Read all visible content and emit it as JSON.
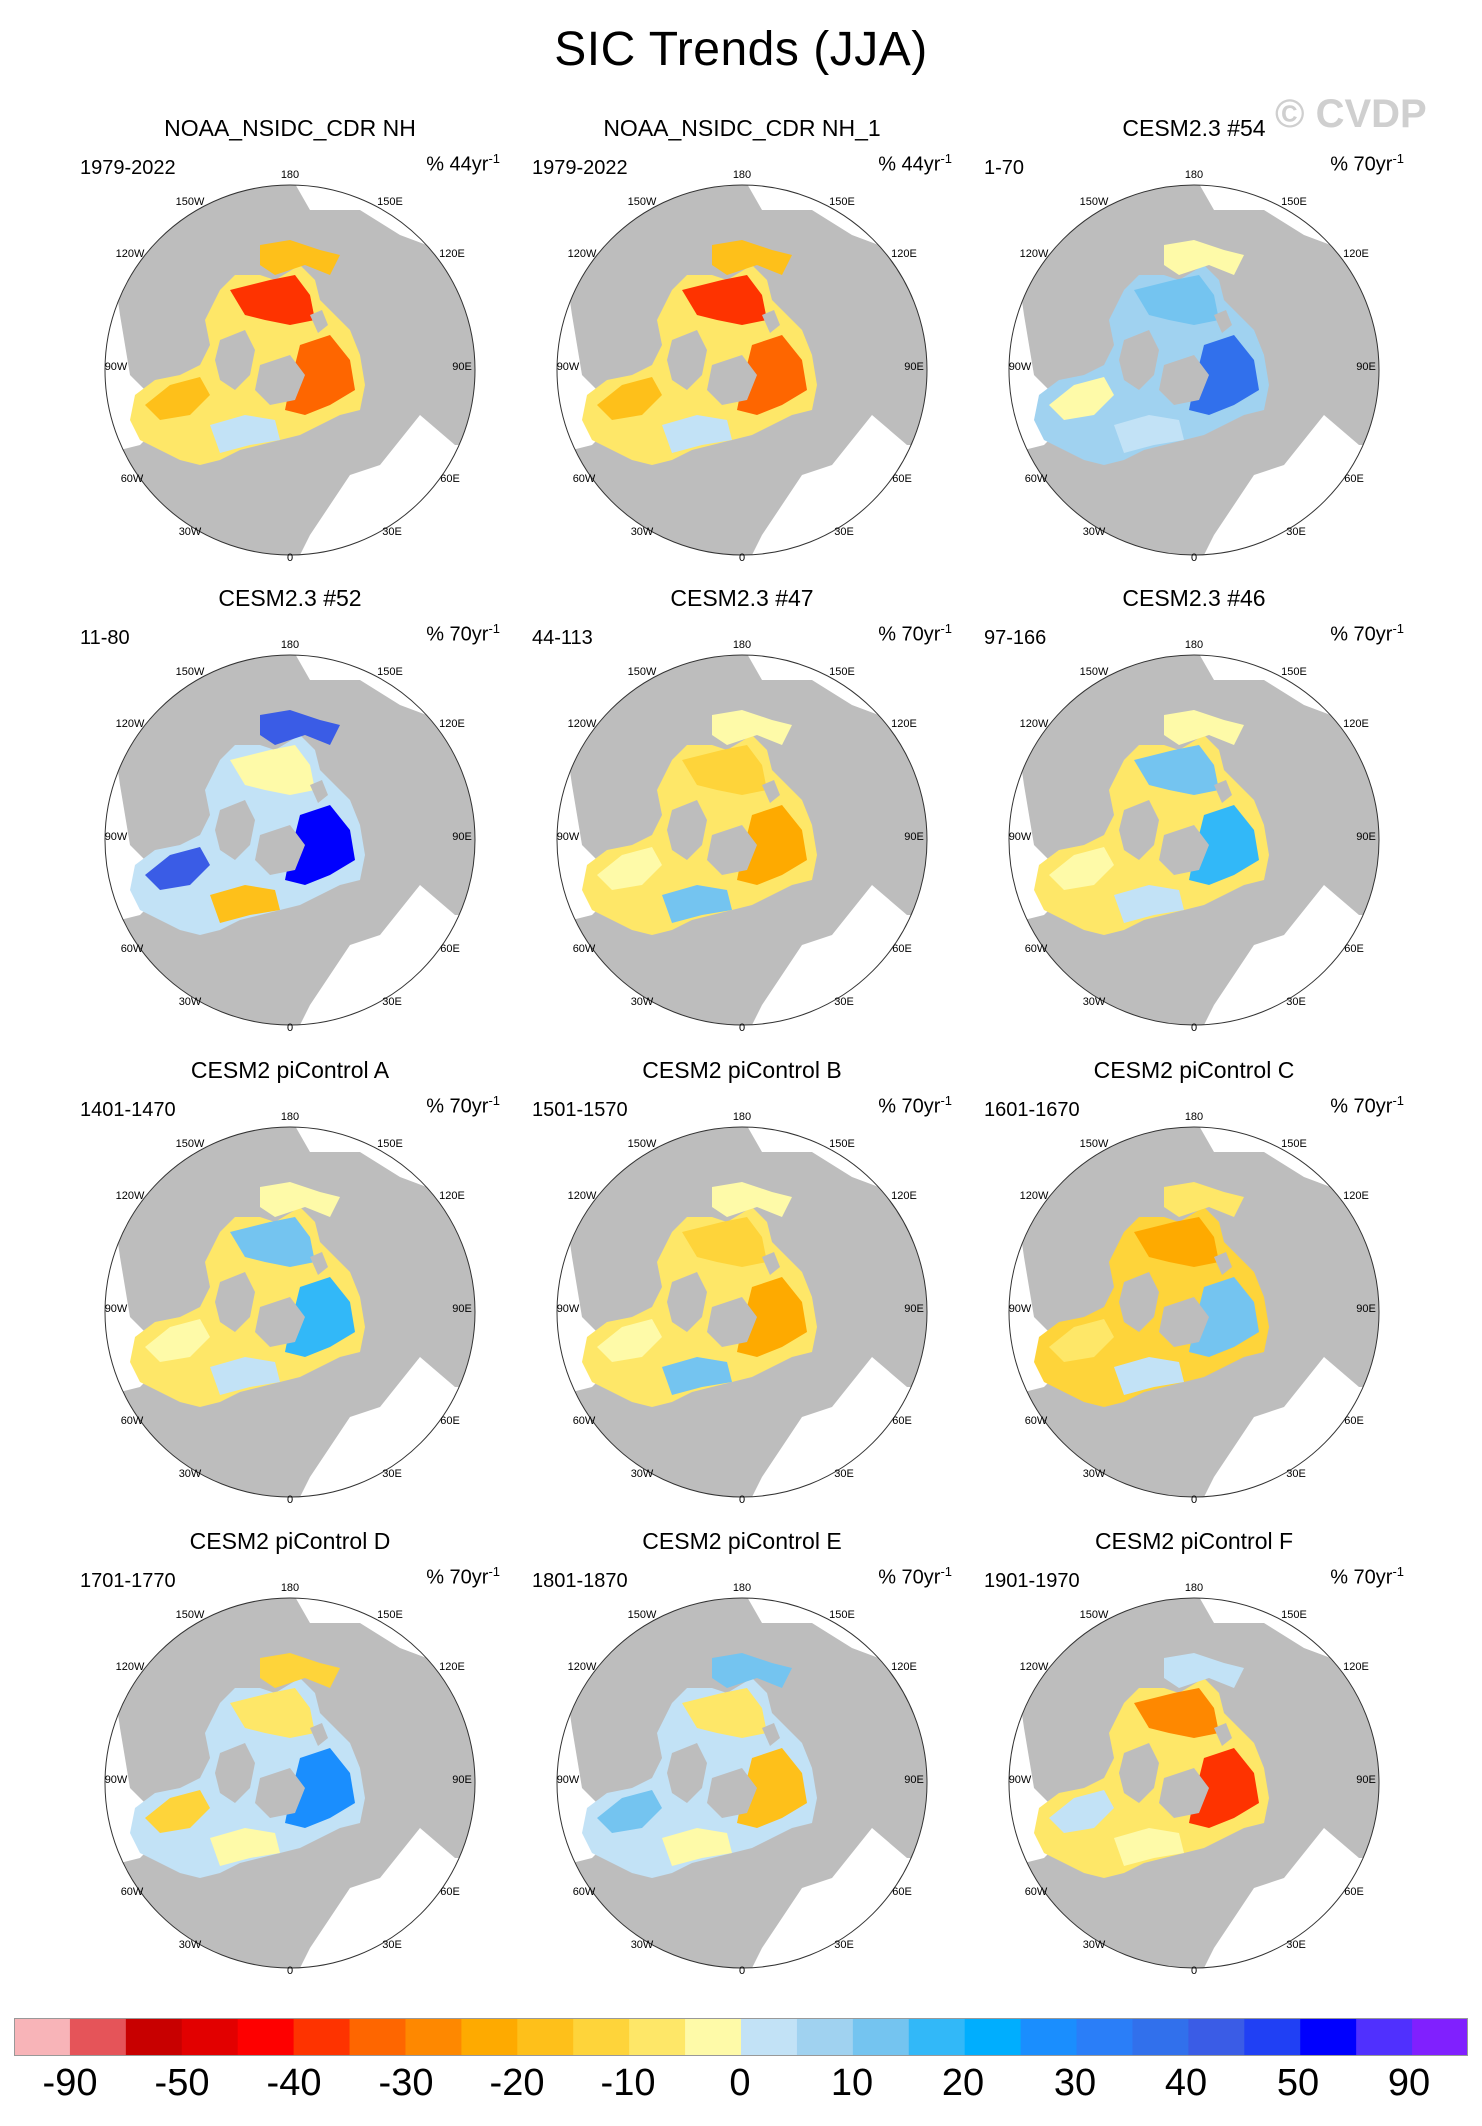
{
  "title": "SIC Trends (JJA)",
  "watermark": "© CVDP",
  "longitude_labels": [
    "180",
    "150W",
    "150E",
    "120W",
    "120E",
    "90W",
    "90E",
    "60W",
    "60E",
    "30W",
    "30E",
    "0"
  ],
  "panels": [
    {
      "title": "NOAA_NSIDC_CDR NH",
      "period": "1979-2022",
      "units": "% 44yr",
      "units_sup": "-1",
      "scenario": "obs"
    },
    {
      "title": "NOAA_NSIDC_CDR NH_1",
      "period": "1979-2022",
      "units": "% 44yr",
      "units_sup": "-1",
      "scenario": "obs"
    },
    {
      "title": "CESM2.3 #54",
      "period": "1-70",
      "units": "% 70yr",
      "units_sup": "-1",
      "scenario": "blue"
    },
    {
      "title": "CESM2.3 #52",
      "period": "11-80",
      "units": "% 70yr",
      "units_sup": "-1",
      "scenario": "bluestrong"
    },
    {
      "title": "CESM2.3 #47",
      "period": "44-113",
      "units": "% 70yr",
      "units_sup": "-1",
      "scenario": "yellow"
    },
    {
      "title": "CESM2.3 #46",
      "period": "97-166",
      "units": "% 70yr",
      "units_sup": "-1",
      "scenario": "mixblue"
    },
    {
      "title": "CESM2 piControl A",
      "period": "1401-1470",
      "units": "% 70yr",
      "units_sup": "-1",
      "scenario": "mixblue"
    },
    {
      "title": "CESM2 piControl B",
      "period": "1501-1570",
      "units": "% 70yr",
      "units_sup": "-1",
      "scenario": "yellow"
    },
    {
      "title": "CESM2 piControl C",
      "period": "1601-1670",
      "units": "% 70yr",
      "units_sup": "-1",
      "scenario": "orange"
    },
    {
      "title": "CESM2 piControl D",
      "period": "1701-1770",
      "units": "% 70yr",
      "units_sup": "-1",
      "scenario": "mixyellow"
    },
    {
      "title": "CESM2 piControl E",
      "period": "1801-1870",
      "units": "% 70yr",
      "units_sup": "-1",
      "scenario": "mixlight"
    },
    {
      "title": "CESM2 piControl F",
      "period": "1901-1970",
      "units": "% 70yr",
      "units_sup": "-1",
      "scenario": "orangestrong"
    }
  ],
  "colorbar": {
    "colors": [
      "#f8b4b8",
      "#e55459",
      "#c80000",
      "#e20000",
      "#fe0000",
      "#fe3300",
      "#fe6600",
      "#fe8800",
      "#feaa00",
      "#fec01a",
      "#fed43a",
      "#fee768",
      "#fefaa8",
      "#c2e2f6",
      "#a0d2f0",
      "#74c4f0",
      "#32b8f8",
      "#00aefe",
      "#1a8efe",
      "#2a7ef8",
      "#3170ec",
      "#3a5ce6",
      "#2040f4",
      "#0000fe",
      "#5030fe",
      "#8020fe"
    ],
    "labels": [
      "-90",
      "-50",
      "-40",
      "-30",
      "-20",
      "-10",
      "0",
      "10",
      "20",
      "30",
      "40",
      "50",
      "90"
    ]
  }
}
